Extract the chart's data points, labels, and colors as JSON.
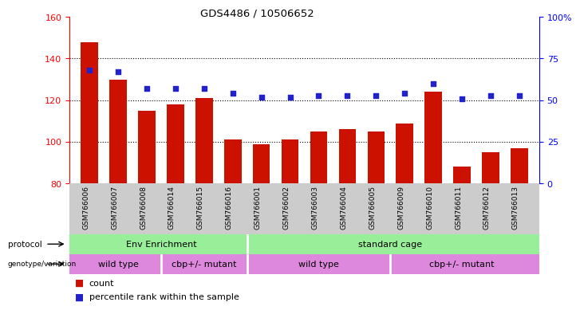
{
  "title": "GDS4486 / 10506652",
  "samples": [
    "GSM766006",
    "GSM766007",
    "GSM766008",
    "GSM766014",
    "GSM766015",
    "GSM766016",
    "GSM766001",
    "GSM766002",
    "GSM766003",
    "GSM766004",
    "GSM766005",
    "GSM766009",
    "GSM766010",
    "GSM766011",
    "GSM766012",
    "GSM766013"
  ],
  "counts": [
    148,
    130,
    115,
    118,
    121,
    101,
    99,
    101,
    105,
    106,
    105,
    109,
    124,
    88,
    95,
    97
  ],
  "percentiles": [
    68,
    67,
    57,
    57,
    57,
    54,
    52,
    52,
    53,
    53,
    53,
    54,
    60,
    51,
    53,
    53
  ],
  "ylim_left": [
    80,
    160
  ],
  "ylim_right": [
    0,
    100
  ],
  "yticks_left": [
    80,
    100,
    120,
    140,
    160
  ],
  "yticks_right": [
    0,
    25,
    50,
    75,
    100
  ],
  "ytick_labels_right": [
    "0",
    "25",
    "50",
    "75",
    "100%"
  ],
  "bar_color": "#cc1100",
  "dot_color": "#2222cc",
  "protocol_labels": [
    "Env Enrichment",
    "standard cage"
  ],
  "protocol_ranges": [
    [
      0,
      6
    ],
    [
      6,
      16
    ]
  ],
  "protocol_color": "#99ee99",
  "genotype_labels": [
    "wild type",
    "cbp+/- mutant",
    "wild type",
    "cbp+/- mutant"
  ],
  "genotype_ranges": [
    [
      0,
      3
    ],
    [
      3,
      6
    ],
    [
      6,
      11
    ],
    [
      11,
      16
    ]
  ],
  "genotype_color": "#dd88dd",
  "bg_color": "#ffffff",
  "label_area_color": "#cccccc",
  "legend_count_color": "#cc1100",
  "legend_dot_color": "#2222cc",
  "grid_dotted_at": [
    100,
    120,
    140
  ]
}
